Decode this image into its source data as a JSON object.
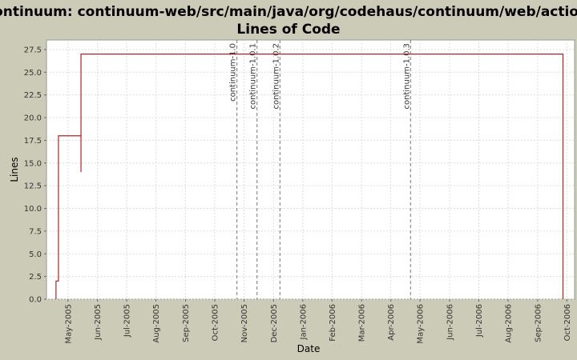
{
  "chart_data": {
    "type": "line",
    "title": [
      "Continuum: continuum-web/src/main/java/org/codehaus/continuum/web/action/",
      "Lines of Code"
    ],
    "x_label": "Date",
    "y_label": "Lines",
    "series": [
      {
        "name": "Lines",
        "color": "#b22222",
        "x": [
          2005.299,
          2005.299,
          2005.306,
          2005.306,
          2005.37,
          2005.37,
          2005.37,
          2006.739,
          2006.739
        ],
        "values": [
          0,
          2,
          2,
          18,
          18,
          14,
          27,
          27,
          0
        ]
      }
    ],
    "markers": [
      {
        "label": "continuum-1.0",
        "x": 2005.813
      },
      {
        "label": "continuum-1.0.1",
        "x": 2005.87
      },
      {
        "label": "continuum-1.0.2",
        "x": 2005.935
      },
      {
        "label": "continuum-1.0.3",
        "x": 2006.306
      }
    ],
    "xlim": [
      2005.272,
      2006.772
    ],
    "xticks": [
      {
        "value": 2005.333,
        "label": "May-2005"
      },
      {
        "value": 2005.417,
        "label": "Jun-2005"
      },
      {
        "value": 2005.5,
        "label": "Jul-2005"
      },
      {
        "value": 2005.583,
        "label": "Aug-2005"
      },
      {
        "value": 2005.667,
        "label": "Sep-2005"
      },
      {
        "value": 2005.75,
        "label": "Oct-2005"
      },
      {
        "value": 2005.833,
        "label": "Nov-2005"
      },
      {
        "value": 2005.917,
        "label": "Dec-2005"
      },
      {
        "value": 2006,
        "label": "Jan-2006"
      },
      {
        "value": 2006.083,
        "label": "Feb-2006"
      },
      {
        "value": 2006.167,
        "label": "Mar-2006"
      },
      {
        "value": 2006.25,
        "label": "Apr-2006"
      },
      {
        "value": 2006.333,
        "label": "May-2006"
      },
      {
        "value": 2006.417,
        "label": "Jun-2006"
      },
      {
        "value": 2006.5,
        "label": "Jul-2006"
      },
      {
        "value": 2006.583,
        "label": "Aug-2006"
      },
      {
        "value": 2006.667,
        "label": "Sep-2006"
      },
      {
        "value": 2006.75,
        "label": "Oct-2006"
      }
    ],
    "ylim": [
      0,
      28.55
    ],
    "yticks": [
      {
        "value": 0,
        "label": "0.0"
      },
      2.5,
      {
        "value": 5,
        "label": "5.0"
      },
      7.5,
      {
        "value": 10,
        "label": "10.0"
      },
      12.5,
      {
        "value": 15,
        "label": "15.0"
      },
      17.5,
      {
        "value": 20,
        "label": "20.0"
      },
      22.5,
      {
        "value": 25,
        "label": "25.0"
      },
      27.5
    ],
    "grid": true
  }
}
